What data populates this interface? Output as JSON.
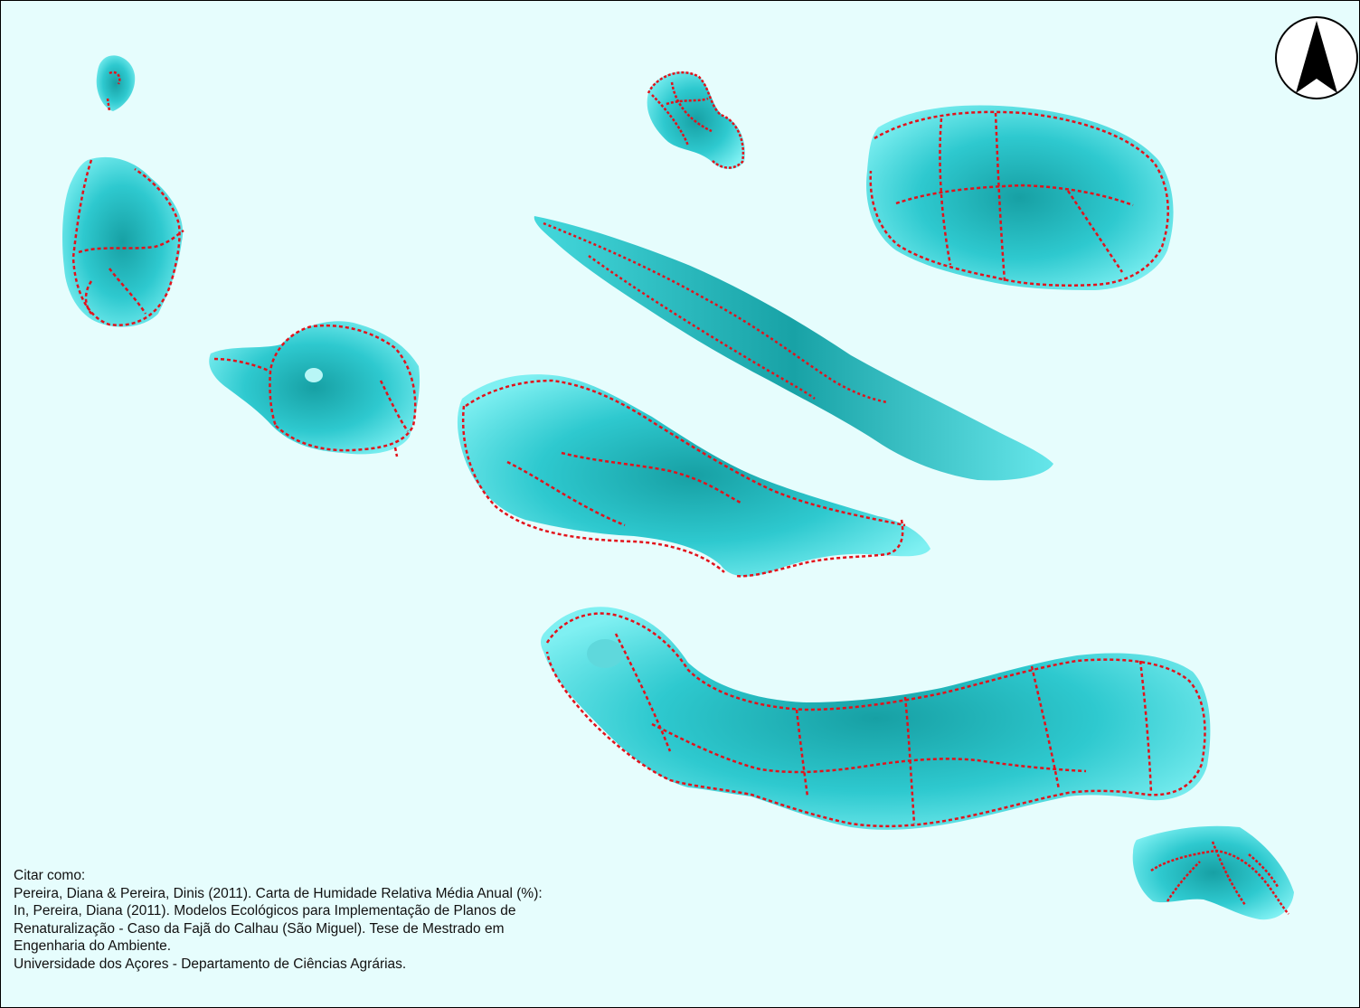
{
  "map": {
    "north_arrow_icon": "north-arrow-icon",
    "colors": {
      "sea": "#e6fdfd",
      "land_light": "#6fe6ea",
      "land_mid": "#2ec9cf",
      "land_dark": "#17a0a4",
      "roads": "#e3121b"
    }
  },
  "citation": {
    "heading": "Citar como:",
    "lines": [
      "Pereira, Diana & Pereira, Dinis (2011). Carta de Humidade Relativa Média Anual (%):",
      "In, Pereira, Diana (2011). Modelos Ecológicos para Implementação de Planos de",
      "Renaturalização - Caso da Fajã do Calhau (São Miguel). Tese de Mestrado em",
      "Engenharia do Ambiente.",
      "Universidade dos Açores - Departamento de Ciências Agrárias."
    ]
  }
}
